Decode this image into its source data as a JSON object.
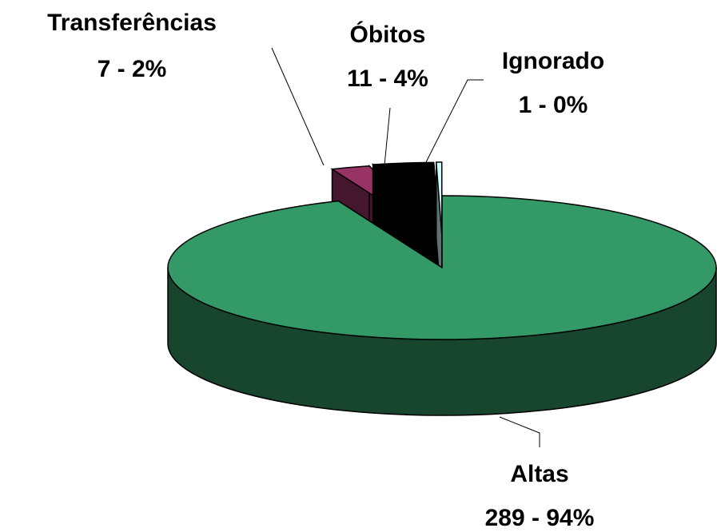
{
  "chart_data": {
    "type": "pie3d",
    "categories": [
      "Altas",
      "Transferências",
      "Óbitos",
      "Ignorado"
    ],
    "values": [
      289,
      7,
      11,
      1
    ],
    "value_labels": [
      "289 - 94%",
      "7 - 2%",
      "11 - 4%",
      "1 - 0%"
    ],
    "colors": [
      "#339966",
      "#993366",
      "#000000",
      "#ccffff"
    ],
    "exploded": [
      false,
      true,
      true,
      true
    ]
  }
}
